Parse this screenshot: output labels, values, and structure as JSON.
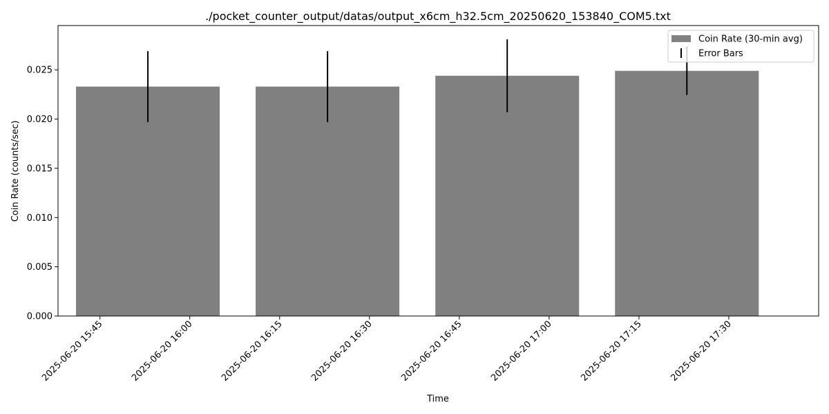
{
  "chart_data": {
    "type": "bar",
    "title": "./pocket_counter_output/datas/output_x6cm_h32.5cm_20250620_153840_COM5.txt",
    "xlabel": "Time",
    "ylabel": "Coin Rate (counts/sec)",
    "x_range": [
      "2025-06-20 15:38",
      "2025-06-20 17:45"
    ],
    "ylim": [
      0,
      0.0295
    ],
    "y_ticks": [
      0.0,
      0.005,
      0.01,
      0.015,
      0.02,
      0.025
    ],
    "y_tick_labels": [
      "0.000",
      "0.005",
      "0.010",
      "0.015",
      "0.020",
      "0.025"
    ],
    "x_ticks": [
      "2025-06-20 15:45",
      "2025-06-20 16:00",
      "2025-06-20 16:15",
      "2025-06-20 16:30",
      "2025-06-20 16:45",
      "2025-06-20 17:00",
      "2025-06-20 17:15",
      "2025-06-20 17:30"
    ],
    "bar_width_minutes": 24,
    "bars": [
      {
        "x": "2025-06-20 15:53",
        "value": 0.0233,
        "error": 0.0036
      },
      {
        "x": "2025-06-20 16:23",
        "value": 0.0233,
        "error": 0.0036
      },
      {
        "x": "2025-06-20 16:53",
        "value": 0.0244,
        "error": 0.0037
      },
      {
        "x": "2025-06-20 17:23",
        "value": 0.0249,
        "error": 0.00245
      }
    ],
    "bar_color": "#808080",
    "error_color": "#000000",
    "legend": {
      "placement": "top-right",
      "entries": [
        {
          "label": "Coin Rate (30-min avg)",
          "kind": "bar"
        },
        {
          "label": "Error Bars",
          "kind": "errorbar"
        }
      ]
    },
    "grid": false
  }
}
